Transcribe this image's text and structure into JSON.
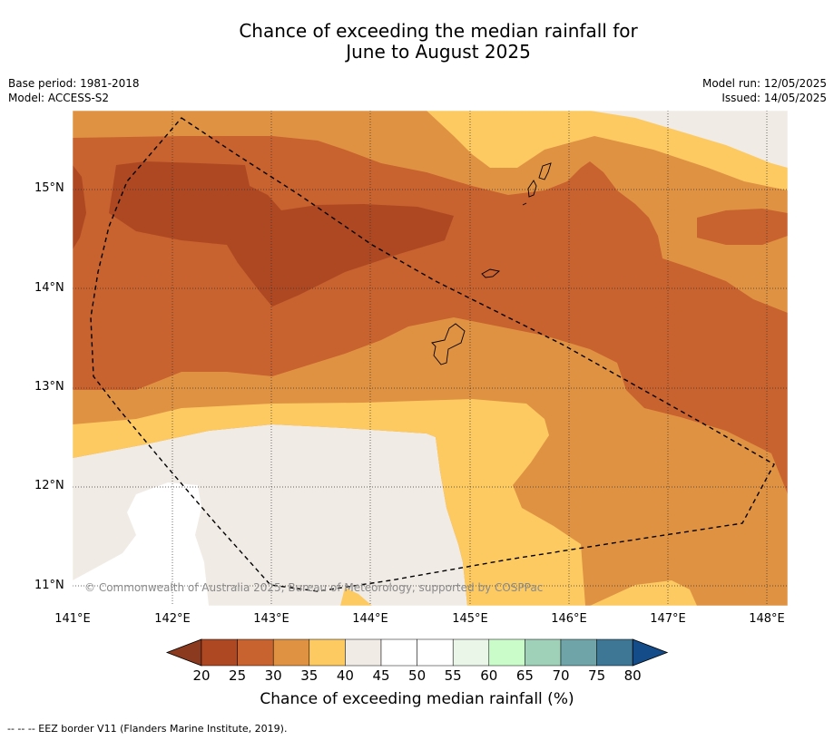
{
  "title": {
    "line1": "Chance of exceeding the median rainfall for",
    "line2": "June to August 2025"
  },
  "meta_left": {
    "base_period": "Base period: 1981-2018",
    "model": "Model: ACCESS-S2"
  },
  "meta_right": {
    "model_run": "Model run: 12/05/2025",
    "issued": "Issued: 14/05/2025"
  },
  "map": {
    "lon_range": [
      141.0,
      148.2
    ],
    "lat_range": [
      10.8,
      15.8
    ],
    "lat_ticks": [
      "15°N",
      "14°N",
      "13°N",
      "12°N",
      "11°N"
    ],
    "lon_ticks": [
      "141°E",
      "142°E",
      "143°E",
      "144°E",
      "145°E",
      "146°E",
      "147°E",
      "148°E"
    ],
    "gridlines": true,
    "copyright": "© Commonwealth of Australia 2025, Bureau of Meteorology, supported by COSPPac"
  },
  "colorbar": {
    "title": "Chance of exceeding median rainfall (%)",
    "tick_labels": [
      "20",
      "25",
      "30",
      "35",
      "40",
      "45",
      "50",
      "55",
      "60",
      "65",
      "70",
      "75",
      "80"
    ],
    "colors": [
      "#8b3a1f",
      "#ad4822",
      "#c8622f",
      "#e09243",
      "#fdca62",
      "#f0ebe5",
      "#ffffff",
      "#ffffff",
      "#e9f6e8",
      "#c9fcc9",
      "#9ed1b7",
      "#6fa5a8",
      "#3e7696",
      "#134c88"
    ]
  },
  "legend": {
    "eez_note": "--  --  -- EEZ border V11 (Flanders Marine Institute, 2019)."
  }
}
